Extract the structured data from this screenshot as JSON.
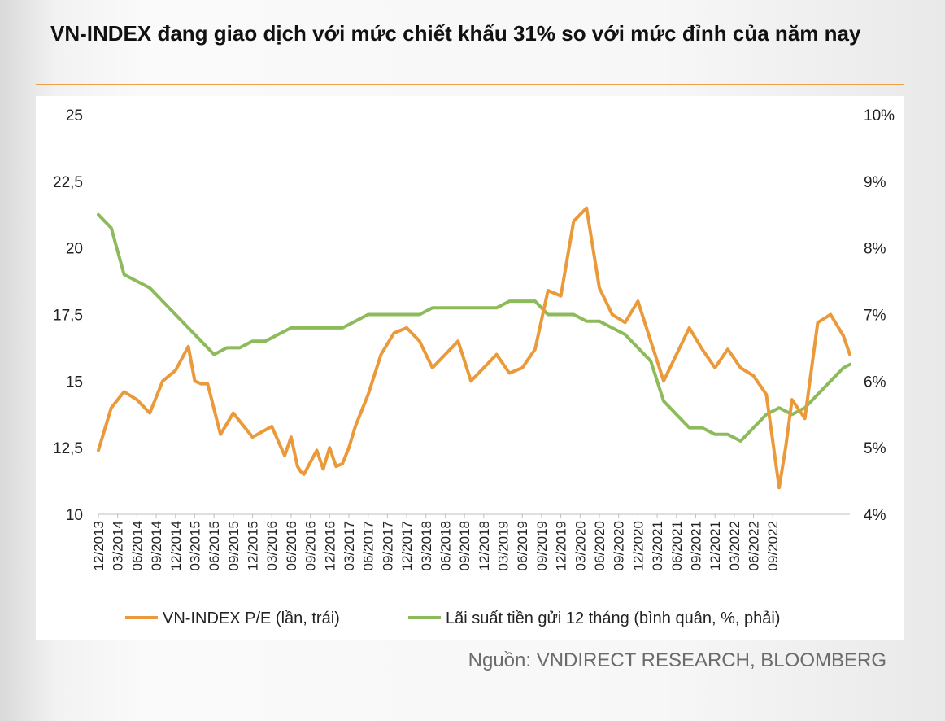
{
  "title": "VN-INDEX đang giao dịch với mức chiết khấu 31% so với mức đỉnh của năm nay",
  "source": "Nguồn: VNDIRECT RESEARCH, BLOOMBERG",
  "colors": {
    "pe": "#eb9a3b",
    "rate": "#8dbb5c",
    "accent": "#f0a04b"
  },
  "chart_data": {
    "type": "line",
    "title": "VN-INDEX đang giao dịch với mức chiết khấu 31% so với mức đỉnh của năm nay",
    "y_left": {
      "min": 10,
      "max": 25,
      "ticks": [
        "10",
        "12,5",
        "15",
        "17,5",
        "20",
        "22,5",
        "25"
      ],
      "tick_values": [
        10,
        12.5,
        15,
        17.5,
        20,
        22.5,
        25
      ]
    },
    "y_right": {
      "min": 4,
      "max": 10,
      "ticks": [
        "4%",
        "5%",
        "6%",
        "7%",
        "8%",
        "9%",
        "10%"
      ],
      "tick_values": [
        4,
        5,
        6,
        7,
        8,
        9,
        10
      ]
    },
    "x_range_months": [
      0,
      117
    ],
    "x_ticks": [
      "12/2013",
      "03/2014",
      "06/2014",
      "09/2014",
      "12/2014",
      "03/2015",
      "06/2015",
      "09/2015",
      "12/2015",
      "03/2016",
      "06/2016",
      "09/2016",
      "12/2016",
      "03/2017",
      "06/2017",
      "09/2017",
      "12/2017",
      "03/2018",
      "06/2018",
      "09/2018",
      "12/2018",
      "03/2019",
      "06/2019",
      "09/2019",
      "12/2019",
      "03/2020",
      "06/2020",
      "09/2020",
      "12/2020",
      "03/2021",
      "06/2021",
      "09/2021",
      "12/2021",
      "03/2022",
      "06/2022",
      "09/2022"
    ],
    "series": [
      {
        "name": "VN-INDEX P/E (lần, trái)",
        "axis": "left",
        "x": [
          0,
          2,
          4,
          6,
          8,
          10,
          12,
          14,
          15,
          16,
          17,
          19,
          21,
          24,
          27,
          29,
          30,
          31,
          31.5,
          32,
          34,
          35,
          36,
          37,
          38,
          39,
          40,
          42,
          44,
          46,
          48,
          50,
          52,
          54,
          56,
          58,
          60,
          62,
          64,
          66,
          68,
          70,
          72,
          74,
          76,
          78,
          80,
          82,
          84,
          86,
          88,
          90,
          92,
          94,
          96,
          98,
          100,
          102,
          104,
          106,
          107,
          108,
          110,
          112,
          114,
          116,
          117
        ],
        "values": [
          12.4,
          14.0,
          14.6,
          14.3,
          13.8,
          15.0,
          15.4,
          16.3,
          15.0,
          14.9,
          14.9,
          13.0,
          13.8,
          12.9,
          13.3,
          12.2,
          12.9,
          11.8,
          11.6,
          11.5,
          12.4,
          11.7,
          12.5,
          11.8,
          11.9,
          12.5,
          13.3,
          14.5,
          16.0,
          16.8,
          17.0,
          16.5,
          15.5,
          16.0,
          16.5,
          15.0,
          15.5,
          16.0,
          15.3,
          15.5,
          16.2,
          18.4,
          18.2,
          21.0,
          21.5,
          18.5,
          17.5,
          17.2,
          18.0,
          16.5,
          15.0,
          16.0,
          17.0,
          16.2,
          15.5,
          16.2,
          15.5,
          15.2,
          14.5,
          11.0,
          12.5,
          14.3,
          13.6,
          17.2,
          17.5,
          16.7,
          16.0
        ]
      },
      {
        "name": "Lãi suất tiền gửi 12 tháng (bình quân, %, phải)",
        "axis": "right",
        "x": [
          0,
          2,
          4,
          6,
          8,
          10,
          12,
          14,
          16,
          18,
          20,
          22,
          24,
          26,
          28,
          30,
          32,
          34,
          36,
          38,
          40,
          42,
          44,
          46,
          48,
          50,
          52,
          54,
          56,
          58,
          60,
          62,
          64,
          66,
          68,
          70,
          72,
          74,
          76,
          78,
          80,
          82,
          84,
          86,
          88,
          90,
          92,
          94,
          96,
          98,
          100,
          102,
          104,
          106,
          108,
          110,
          112,
          114,
          116,
          117
        ],
        "values": [
          8.5,
          8.3,
          7.6,
          7.5,
          7.4,
          7.2,
          7.0,
          6.8,
          6.6,
          6.4,
          6.5,
          6.5,
          6.6,
          6.6,
          6.7,
          6.8,
          6.8,
          6.8,
          6.8,
          6.8,
          6.9,
          7.0,
          7.0,
          7.0,
          7.0,
          7.0,
          7.1,
          7.1,
          7.1,
          7.1,
          7.1,
          7.1,
          7.2,
          7.2,
          7.2,
          7.0,
          7.0,
          7.0,
          6.9,
          6.9,
          6.8,
          6.7,
          6.5,
          6.3,
          5.7,
          5.5,
          5.3,
          5.3,
          5.2,
          5.2,
          5.1,
          5.3,
          5.5,
          5.6,
          5.5,
          5.6,
          5.8,
          6.0,
          6.2,
          6.25
        ]
      }
    ]
  }
}
